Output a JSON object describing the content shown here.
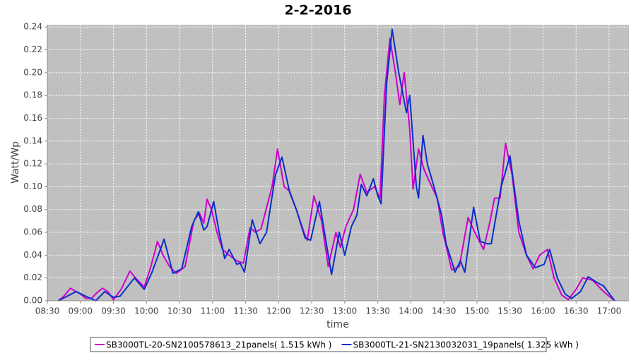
{
  "chart_data": {
    "type": "line",
    "title": "2-2-2016",
    "xlabel": "time",
    "ylabel": "Watt/Wp",
    "xlim": [
      "08:30",
      "17:18"
    ],
    "xticks": [
      "08:30",
      "09:00",
      "09:30",
      "10:00",
      "10:30",
      "11:00",
      "11:30",
      "12:00",
      "12:30",
      "13:00",
      "13:30",
      "14:00",
      "14:30",
      "15:00",
      "15:30",
      "16:00",
      "16:30",
      "17:00"
    ],
    "ylim": [
      0,
      0.242
    ],
    "yticks": [
      {
        "value": 0,
        "label": "0.00"
      },
      {
        "value": 0.02,
        "label": "0.02"
      },
      {
        "value": 0.04,
        "label": "0.04"
      },
      {
        "value": 0.06,
        "label": "0.06"
      },
      {
        "value": 0.08,
        "label": "0.08"
      },
      {
        "value": 0.1,
        "label": "0.10"
      },
      {
        "value": 0.12,
        "label": "0.12"
      },
      {
        "value": 0.14,
        "label": "0.14"
      },
      {
        "value": 0.16,
        "label": "0.16"
      },
      {
        "value": 0.18,
        "label": "0.18"
      },
      {
        "value": 0.2,
        "label": "0.20"
      },
      {
        "value": 0.22,
        "label": "0.22"
      },
      {
        "value": 0.24,
        "label": "0.24"
      }
    ],
    "grid": true,
    "legend": "bottom",
    "series": [
      {
        "name": "SB3000TL-20-SN2100578613_21panels( 1.515 kWh )",
        "color": "#cc00cc",
        "x": [
          "08:40",
          "08:45",
          "08:51",
          "08:56",
          "09:00",
          "09:05",
          "09:10",
          "09:15",
          "09:20",
          "09:25",
          "09:30",
          "09:37",
          "09:45",
          "09:50",
          "09:58",
          "10:04",
          "10:10",
          "10:15",
          "10:21",
          "10:27",
          "10:35",
          "10:43",
          "10:48",
          "10:52",
          "10:55",
          "10:59",
          "11:04",
          "11:09",
          "11:15",
          "11:22",
          "11:28",
          "11:34",
          "11:39",
          "11:44",
          "11:54",
          "11:59",
          "12:05",
          "12:10",
          "12:16",
          "12:23",
          "12:26",
          "12:32",
          "12:39",
          "12:45",
          "12:52",
          "12:56",
          "13:01",
          "13:08",
          "13:14",
          "13:20",
          "13:27",
          "13:32",
          "13:36",
          "13:41",
          "13:46",
          "13:50",
          "13:54",
          "13:59",
          "14:02",
          "14:07",
          "14:12",
          "14:19",
          "14:24",
          "14:29",
          "14:34",
          "14:37",
          "14:44",
          "14:52",
          "14:58",
          "15:06",
          "15:12",
          "15:16",
          "15:21",
          "15:26",
          "15:32",
          "15:38",
          "15:45",
          "15:51",
          "15:57",
          "16:04",
          "16:10",
          "16:17",
          "16:23",
          "16:30",
          "16:36",
          "16:45",
          "16:55",
          "17:05"
        ],
        "values": [
          0,
          0.004,
          0.011,
          0.008,
          0.006,
          0.002,
          0.002,
          0.007,
          0.011,
          0.008,
          0.001,
          0.01,
          0.026,
          0.02,
          0.012,
          0.03,
          0.052,
          0.04,
          0.03,
          0.024,
          0.03,
          0.07,
          0.077,
          0.068,
          0.089,
          0.08,
          0.06,
          0.045,
          0.04,
          0.035,
          0.033,
          0.064,
          0.06,
          0.063,
          0.1,
          0.133,
          0.1,
          0.096,
          0.08,
          0.06,
          0.053,
          0.092,
          0.07,
          0.03,
          0.06,
          0.047,
          0.065,
          0.08,
          0.111,
          0.095,
          0.1,
          0.09,
          0.18,
          0.23,
          0.2,
          0.172,
          0.2,
          0.15,
          0.098,
          0.133,
          0.115,
          0.1,
          0.09,
          0.06,
          0.04,
          0.027,
          0.03,
          0.073,
          0.06,
          0.045,
          0.07,
          0.09,
          0.09,
          0.138,
          0.11,
          0.06,
          0.04,
          0.028,
          0.04,
          0.045,
          0.02,
          0.005,
          0.001,
          0.01,
          0.02,
          0.018,
          0.008,
          0
        ]
      },
      {
        "name": "SB3000TL-21-SN2130032031_19panels( 1.325 kWh )",
        "color": "#0a2ecc",
        "x": [
          "08:40",
          "08:56",
          "09:07",
          "09:14",
          "09:22",
          "09:30",
          "09:36",
          "09:49",
          "09:58",
          "10:05",
          "10:16",
          "10:24",
          "10:32",
          "10:41",
          "10:47",
          "10:52",
          "10:55",
          "11:01",
          "11:06",
          "11:11",
          "11:15",
          "11:22",
          "11:25",
          "11:29",
          "11:36",
          "11:43",
          "11:49",
          "11:57",
          "12:03",
          "12:10",
          "12:16",
          "12:24",
          "12:29",
          "12:37",
          "12:45",
          "12:48",
          "12:55",
          "13:00",
          "13:06",
          "13:11",
          "13:15",
          "13:20",
          "13:26",
          "13:30",
          "13:33",
          "13:38",
          "13:43",
          "13:49",
          "13:56",
          "13:59",
          "14:05",
          "14:07",
          "14:11",
          "14:15",
          "14:21",
          "14:28",
          "14:32",
          "14:37",
          "14:40",
          "14:45",
          "14:49",
          "14:57",
          "15:03",
          "15:09",
          "15:13",
          "15:22",
          "15:30",
          "15:38",
          "15:45",
          "15:53",
          "16:01",
          "16:06",
          "16:13",
          "16:20",
          "16:26",
          "16:34",
          "16:41",
          "16:49",
          "16:55",
          "17:05"
        ],
        "values": [
          0,
          0.008,
          0.003,
          0,
          0.008,
          0.003,
          0.004,
          0.02,
          0.01,
          0.025,
          0.054,
          0.024,
          0.028,
          0.065,
          0.078,
          0.062,
          0.065,
          0.087,
          0.06,
          0.037,
          0.045,
          0.032,
          0.033,
          0.025,
          0.071,
          0.05,
          0.06,
          0.11,
          0.126,
          0.095,
          0.08,
          0.055,
          0.053,
          0.087,
          0.04,
          0.023,
          0.06,
          0.04,
          0.065,
          0.075,
          0.102,
          0.092,
          0.107,
          0.092,
          0.085,
          0.19,
          0.238,
          0.2,
          0.165,
          0.18,
          0.1,
          0.09,
          0.145,
          0.12,
          0.1,
          0.075,
          0.05,
          0.035,
          0.025,
          0.035,
          0.025,
          0.082,
          0.052,
          0.05,
          0.05,
          0.1,
          0.127,
          0.07,
          0.04,
          0.029,
          0.032,
          0.045,
          0.02,
          0.006,
          0.002,
          0.008,
          0.021,
          0.016,
          0.013,
          0
        ]
      }
    ]
  }
}
